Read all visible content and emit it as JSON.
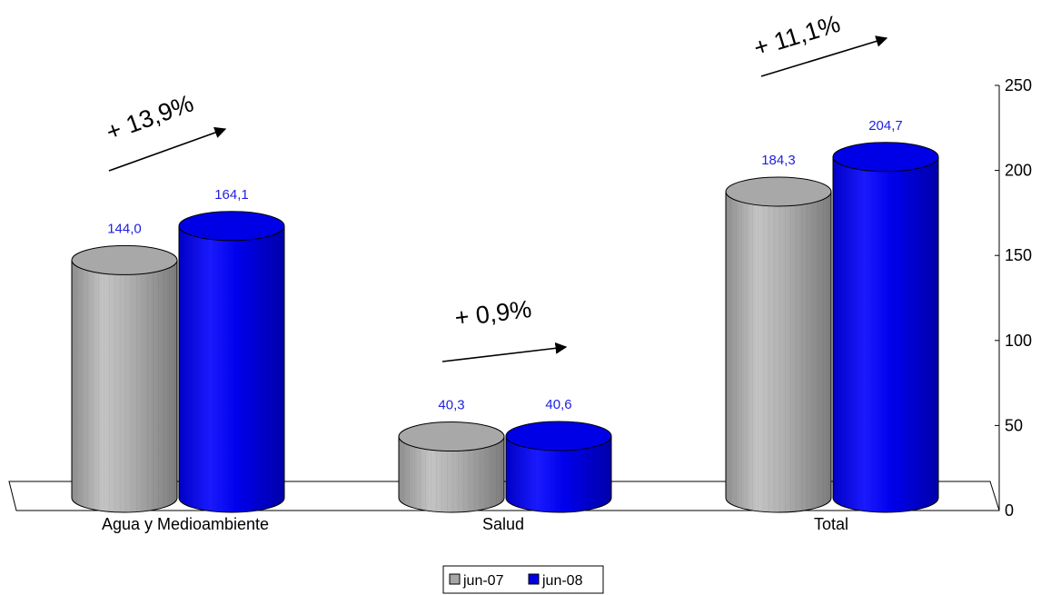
{
  "chart_data": {
    "type": "bar",
    "style": "3d-cylinder",
    "categories": [
      "Agua y Medioambiente",
      "Salud",
      "Total"
    ],
    "series": [
      {
        "name": "jun-07",
        "values": [
          144.0,
          40.3,
          184.3
        ],
        "labels": [
          "144,0",
          "40,3",
          "184,3"
        ],
        "color": "#a6a6a6"
      },
      {
        "name": "jun-08",
        "values": [
          164.1,
          40.6,
          204.7
        ],
        "labels": [
          "164,1",
          "40,6",
          "204,7"
        ],
        "color": "#0000e6"
      }
    ],
    "label_color": "#1f1fe0",
    "yaxis": {
      "position": "right",
      "ylim": [
        0,
        250
      ],
      "ticks": [
        "0",
        "50",
        "100",
        "150",
        "200",
        "250"
      ]
    },
    "annotations": [
      "+ 13,9%",
      "+ 0,9%",
      "+ 11,1%"
    ],
    "legend": {
      "placement": "bottom",
      "entries": [
        "jun-07",
        "jun-08"
      ]
    },
    "grid": false
  }
}
